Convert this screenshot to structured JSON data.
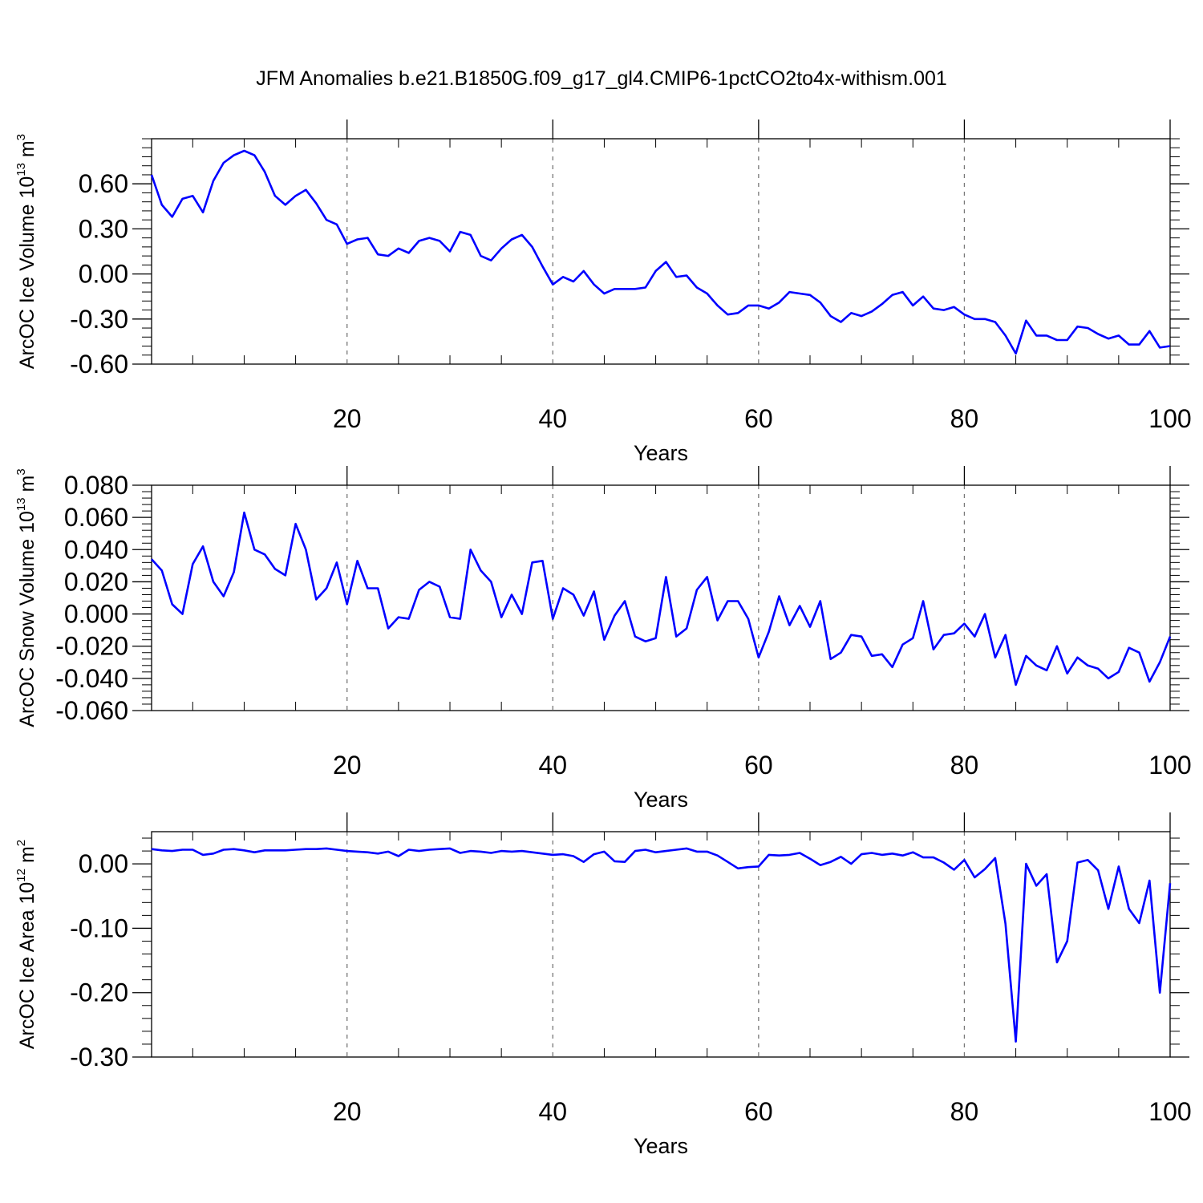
{
  "title": "JFM Anomalies b.e21.B1850G.f09_g17_gl4.CMIP6-1pctCO2to4x-withism.001",
  "line_color": "#0000ff",
  "chart_data": [
    {
      "type": "line",
      "xlabel": "Years",
      "ylabel": {
        "prefix": "ArcOC Ice Volume 10",
        "exp": "13",
        "unit_prefix": " m",
        "unit_exp": "3"
      },
      "xlim": [
        1,
        100
      ],
      "ylim": [
        -0.6,
        0.9
      ],
      "yticks": [
        -0.6,
        -0.3,
        0.0,
        0.3,
        0.6
      ],
      "ytick_labels": [
        "-0.60",
        "-0.30",
        "0.00",
        "0.30",
        "0.60"
      ],
      "xticks": [
        20,
        40,
        60,
        80,
        100
      ],
      "xtick_labels": [
        "20",
        "40",
        "60",
        "80",
        "100"
      ],
      "x_start": 1,
      "values": [
        0.66,
        0.46,
        0.38,
        0.5,
        0.52,
        0.41,
        0.62,
        0.74,
        0.79,
        0.82,
        0.79,
        0.68,
        0.52,
        0.46,
        0.52,
        0.56,
        0.47,
        0.36,
        0.33,
        0.2,
        0.23,
        0.24,
        0.13,
        0.12,
        0.17,
        0.14,
        0.22,
        0.24,
        0.22,
        0.15,
        0.28,
        0.26,
        0.12,
        0.09,
        0.17,
        0.23,
        0.26,
        0.18,
        0.05,
        -0.07,
        -0.02,
        -0.05,
        0.02,
        -0.07,
        -0.13,
        -0.1,
        -0.1,
        -0.1,
        -0.09,
        0.02,
        0.08,
        -0.02,
        -0.01,
        -0.09,
        -0.13,
        -0.21,
        -0.27,
        -0.26,
        -0.21,
        -0.21,
        -0.23,
        -0.19,
        -0.12,
        -0.13,
        -0.14,
        -0.19,
        -0.28,
        -0.32,
        -0.26,
        -0.28,
        -0.25,
        -0.2,
        -0.14,
        -0.12,
        -0.21,
        -0.15,
        -0.23,
        -0.24,
        -0.22,
        -0.27,
        -0.3,
        -0.3,
        -0.32,
        -0.41,
        -0.53,
        -0.31,
        -0.41,
        -0.41,
        -0.44,
        -0.44,
        -0.35,
        -0.36,
        -0.4,
        -0.43,
        -0.41,
        -0.47,
        -0.47,
        -0.38,
        -0.49,
        -0.48
      ]
    },
    {
      "type": "line",
      "xlabel": "Years",
      "ylabel": {
        "prefix": "ArcOC Snow Volume 10",
        "exp": "13",
        "unit_prefix": " m",
        "unit_exp": "3"
      },
      "xlim": [
        1,
        100
      ],
      "ylim": [
        -0.06,
        0.08
      ],
      "yticks": [
        -0.06,
        -0.04,
        -0.02,
        0.0,
        0.02,
        0.04,
        0.06,
        0.08
      ],
      "ytick_labels": [
        "-0.060",
        "-0.040",
        "-0.020",
        "0.000",
        "0.020",
        "0.040",
        "0.060",
        "0.080"
      ],
      "xticks": [
        20,
        40,
        60,
        80,
        100
      ],
      "xtick_labels": [
        "20",
        "40",
        "60",
        "80",
        "100"
      ],
      "x_start": 1,
      "values": [
        0.034,
        0.027,
        0.006,
        0.0,
        0.031,
        0.042,
        0.02,
        0.011,
        0.026,
        0.063,
        0.04,
        0.037,
        0.028,
        0.024,
        0.056,
        0.04,
        0.009,
        0.016,
        0.032,
        0.006,
        0.033,
        0.016,
        0.016,
        -0.009,
        -0.002,
        -0.003,
        0.015,
        0.02,
        0.017,
        -0.002,
        -0.003,
        0.04,
        0.027,
        0.02,
        -0.002,
        0.012,
        0.0,
        0.032,
        0.033,
        -0.003,
        0.016,
        0.012,
        -0.001,
        0.014,
        -0.016,
        -0.001,
        0.008,
        -0.014,
        -0.017,
        -0.015,
        0.023,
        -0.014,
        -0.009,
        0.015,
        0.023,
        -0.004,
        0.008,
        0.008,
        -0.003,
        -0.027,
        -0.011,
        0.011,
        -0.007,
        0.005,
        -0.008,
        0.008,
        -0.028,
        -0.024,
        -0.013,
        -0.014,
        -0.026,
        -0.025,
        -0.033,
        -0.019,
        -0.015,
        0.008,
        -0.022,
        -0.013,
        -0.012,
        -0.006,
        -0.014,
        0.0,
        -0.027,
        -0.013,
        -0.044,
        -0.026,
        -0.032,
        -0.035,
        -0.02,
        -0.037,
        -0.027,
        -0.032,
        -0.034,
        -0.04,
        -0.036,
        -0.021,
        -0.024,
        -0.042,
        -0.03,
        -0.014
      ]
    },
    {
      "type": "line",
      "xlabel": "Years",
      "ylabel": {
        "prefix": "ArcOC Ice Area 10",
        "exp": "12",
        "unit_prefix": " m",
        "unit_exp": "2"
      },
      "xlim": [
        1,
        100
      ],
      "ylim": [
        -0.3,
        0.05
      ],
      "yticks": [
        -0.3,
        -0.2,
        -0.1,
        0.0
      ],
      "ytick_labels": [
        "-0.30",
        "-0.20",
        "-0.10",
        "0.00"
      ],
      "xticks": [
        20,
        40,
        60,
        80,
        100
      ],
      "xtick_labels": [
        "20",
        "40",
        "60",
        "80",
        "100"
      ],
      "x_start": 1,
      "values": [
        0.023,
        0.021,
        0.02,
        0.022,
        0.022,
        0.014,
        0.016,
        0.022,
        0.023,
        0.021,
        0.018,
        0.021,
        0.021,
        0.021,
        0.022,
        0.023,
        0.023,
        0.024,
        0.022,
        0.02,
        0.019,
        0.018,
        0.016,
        0.019,
        0.012,
        0.022,
        0.02,
        0.022,
        0.023,
        0.024,
        0.017,
        0.02,
        0.019,
        0.017,
        0.02,
        0.019,
        0.02,
        0.018,
        0.016,
        0.014,
        0.015,
        0.012,
        0.003,
        0.015,
        0.019,
        0.004,
        0.003,
        0.02,
        0.022,
        0.018,
        0.02,
        0.022,
        0.024,
        0.019,
        0.019,
        0.013,
        0.003,
        -0.007,
        -0.005,
        -0.004,
        0.014,
        0.013,
        0.014,
        0.017,
        0.008,
        -0.002,
        0.003,
        0.011,
        0.0,
        0.015,
        0.017,
        0.014,
        0.016,
        0.013,
        0.018,
        0.01,
        0.01,
        0.002,
        -0.009,
        0.006,
        -0.021,
        -0.008,
        0.009,
        -0.093,
        -0.276,
        0.0,
        -0.034,
        -0.016,
        -0.153,
        -0.12,
        0.002,
        0.006,
        -0.01,
        -0.07,
        -0.004,
        -0.07,
        -0.092,
        -0.026,
        -0.2,
        -0.03
      ]
    }
  ]
}
